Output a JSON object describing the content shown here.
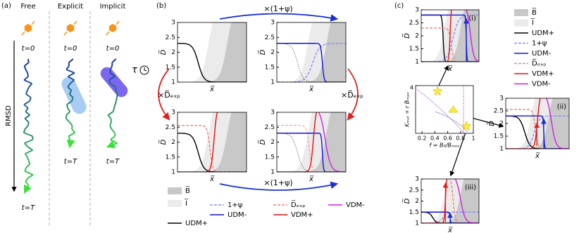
{
  "panel_a": {
    "label": "(a)",
    "axis": "RMSD",
    "tau": "τ",
    "columns": [
      {
        "title": "Free",
        "color": "#000000",
        "start": "t=0",
        "end": "t=T"
      },
      {
        "title": "Explicit",
        "color": "#e02020",
        "start": "t=0",
        "end": "t=T"
      },
      {
        "title": "Implicit",
        "color": "#2030d0",
        "start": "t=0",
        "end": "t=T"
      }
    ]
  },
  "panel_b": {
    "label": "(b)",
    "arrows": [
      {
        "text": "×(1+ψ)",
        "color": "#1a30d8"
      },
      {
        "text": "×(1+ψ)",
        "color": "#1a30d8"
      },
      {
        "text": "×D̅ₑₓₚ",
        "color": "#e02020"
      },
      {
        "text": "×D̅ₑₓₚ",
        "color": "#e02020"
      }
    ],
    "plots": [
      {
        "ylabel": "D̅",
        "xlabel": "x̅",
        "yticks": [
          1,
          1.5,
          2,
          2.5,
          3
        ]
      },
      {
        "ylabel": "D̅",
        "xlabel": "x̅",
        "yticks": [
          1,
          1.5,
          2,
          2.5,
          3
        ]
      },
      {
        "ylabel": "D̅",
        "xlabel": "x̅",
        "yticks": [
          1,
          1.5,
          2,
          2.5,
          3
        ]
      },
      {
        "ylabel": "D̅",
        "xlabel": "x̅",
        "yticks": [
          1,
          1.5,
          2,
          2.5,
          3
        ]
      }
    ],
    "legend": [
      {
        "label": "B̅",
        "color": "#c8c8c8",
        "style": "box"
      },
      {
        "label": "I̅",
        "color": "#ebebeb",
        "style": "box"
      },
      {
        "label": "UDM+",
        "color": "#000000",
        "style": "line"
      },
      {
        "label": "1+ψ",
        "color": "#8a8ff0",
        "style": "dash"
      },
      {
        "label": "UDM-",
        "color": "#1010e0",
        "style": "line"
      },
      {
        "label": "D̅ₑₓₚ",
        "color": "#f08080",
        "style": "dash"
      },
      {
        "label": "VDM+",
        "color": "#e81010",
        "style": "line"
      },
      {
        "label": "VDM-",
        "color": "#d020e0",
        "style": "line"
      }
    ]
  },
  "panel_c": {
    "label": "(c)",
    "plots": [
      {
        "tag": "(i)",
        "ylabel": "D̅",
        "xlabel": "x̅",
        "yticks": [
          1,
          1.5,
          2,
          2.5,
          3
        ]
      },
      {
        "tag": "(ii)",
        "ylabel": "D̅",
        "xlabel": "x̅",
        "yticks": [
          1,
          1.5,
          2,
          2.5,
          3
        ]
      },
      {
        "tag": "(iii)",
        "ylabel": "D̅",
        "xlabel": "x̅",
        "yticks": [
          1,
          1.5,
          2,
          2.5,
          3
        ]
      }
    ],
    "inset": {
      "ylabel": "Kₘᵤₜ ∝ r Bₘₐₓ",
      "xlabel": "f = B₀/Bₘₐₓ",
      "xlim": [
        0.1,
        1
      ],
      "ylim": [
        0,
        4
      ],
      "xticks": [
        0.2,
        0.4,
        0.6,
        0.8,
        1
      ],
      "yticks": [
        4
      ]
    },
    "legend": [
      {
        "label": "B̅",
        "color": "#c8c8c8",
        "style": "box"
      },
      {
        "label": "I̅",
        "color": "#ebebeb",
        "style": "box"
      },
      {
        "label": "UDM+",
        "color": "#000000",
        "style": "line"
      },
      {
        "label": "1+ψ",
        "color": "#8a8ff0",
        "style": "dash"
      },
      {
        "label": "UDM-",
        "color": "#1010e0",
        "style": "line"
      },
      {
        "label": "D̅ₑₓₚ",
        "color": "#f08080",
        "style": "dash"
      },
      {
        "label": "VDM+",
        "color": "#e81010",
        "style": "line"
      },
      {
        "label": "VDM-",
        "color": "#d020e0",
        "style": "line"
      }
    ]
  }
}
